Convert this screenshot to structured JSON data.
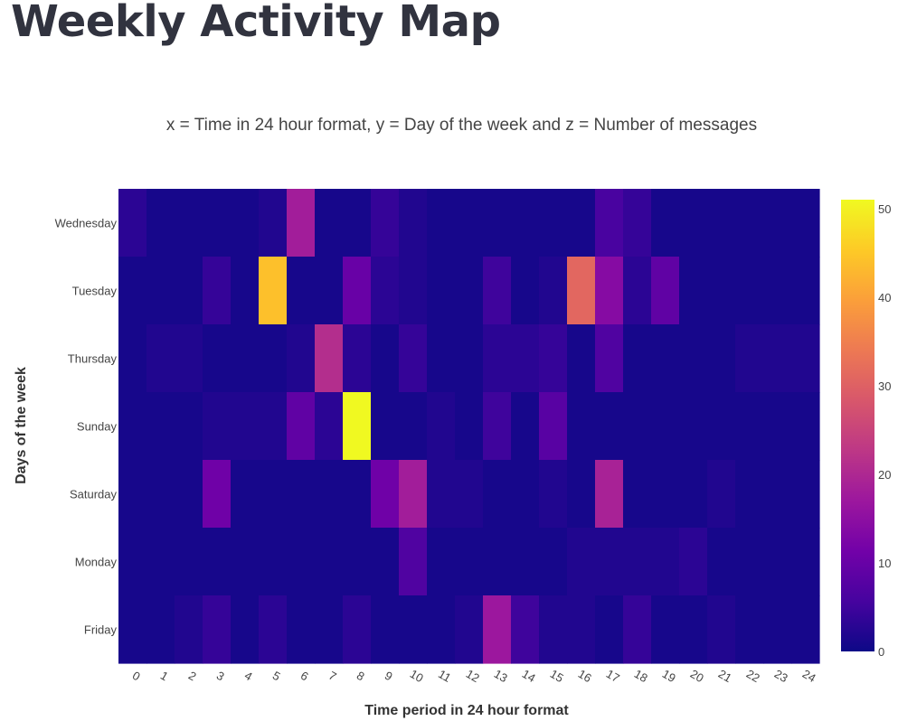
{
  "page": {
    "title": "Weekly Activity Map"
  },
  "chart_data": {
    "type": "heatmap",
    "title": "x = Time in 24 hour format, y = Day of the week and z = Number of messages",
    "xlabel": "Time period in 24 hour format",
    "ylabel": "Days of the week",
    "x": [
      "0",
      "1",
      "2",
      "3",
      "4",
      "5",
      "6",
      "7",
      "8",
      "9",
      "10",
      "11",
      "12",
      "13",
      "14",
      "15",
      "16",
      "17",
      "18",
      "19",
      "20",
      "21",
      "22",
      "23",
      "24"
    ],
    "y": [
      "Wednesday",
      "Tuesday",
      "Thursday",
      "Sunday",
      "Saturday",
      "Monday",
      "Friday"
    ],
    "z": [
      [
        3,
        1,
        1,
        1,
        1,
        2,
        18,
        1,
        1,
        4,
        2,
        1,
        1,
        1,
        1,
        1,
        1,
        6,
        4,
        1,
        1,
        1,
        1,
        1,
        1
      ],
      [
        1,
        1,
        1,
        4,
        1,
        44,
        1,
        1,
        10,
        3,
        2,
        1,
        1,
        5,
        1,
        2,
        31,
        14,
        3,
        9,
        1,
        1,
        1,
        1,
        1
      ],
      [
        1,
        2,
        2,
        1,
        1,
        1,
        2,
        21,
        3,
        1,
        4,
        1,
        1,
        3,
        3,
        4,
        1,
        7,
        1,
        1,
        1,
        1,
        2,
        2,
        2
      ],
      [
        1,
        1,
        1,
        2,
        2,
        2,
        9,
        3,
        51,
        1,
        1,
        2,
        1,
        5,
        1,
        8,
        1,
        1,
        1,
        1,
        1,
        1,
        1,
        1,
        1
      ],
      [
        1,
        1,
        1,
        11,
        1,
        1,
        1,
        1,
        1,
        11,
        18,
        2,
        2,
        1,
        1,
        2,
        1,
        19,
        1,
        1,
        1,
        2,
        1,
        1,
        1
      ],
      [
        1,
        1,
        1,
        1,
        1,
        1,
        1,
        1,
        1,
        1,
        7,
        1,
        1,
        1,
        1,
        1,
        2,
        2,
        2,
        2,
        3,
        1,
        1,
        1,
        1
      ],
      [
        1,
        1,
        2,
        4,
        1,
        3,
        1,
        1,
        3,
        1,
        1,
        1,
        2,
        17,
        5,
        2,
        2,
        1,
        4,
        1,
        1,
        2,
        1,
        1,
        1
      ]
    ],
    "zrange": [
      0,
      51
    ],
    "colorbar": {
      "ticks": [
        0,
        10,
        20,
        30,
        40,
        50
      ]
    },
    "colorscale": [
      "#0d0887",
      "#46039f",
      "#7201a8",
      "#9c179e",
      "#bd3786",
      "#d8576b",
      "#ed7953",
      "#fb9f3a",
      "#fdca26",
      "#f0f921"
    ],
    "grid": false,
    "legend": "colorbar-right"
  }
}
